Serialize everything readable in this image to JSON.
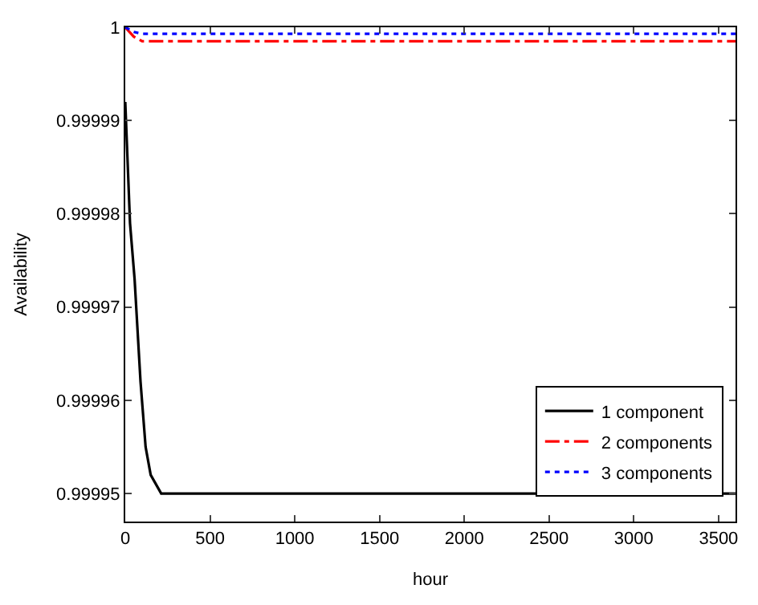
{
  "chart_data": {
    "type": "line",
    "xlabel": "hour",
    "ylabel": "Availability",
    "xlim": [
      0,
      3600
    ],
    "xticks": [
      0,
      500,
      1000,
      1500,
      2000,
      2500,
      3000,
      3500
    ],
    "ylim": [
      0.999947,
      1
    ],
    "yticks": [
      0.99995,
      0.99996,
      0.99997,
      0.99998,
      0.99999,
      1
    ],
    "legend": "bottom right",
    "marker": "none",
    "series": [
      {
        "name": "1 component",
        "color": "#000000",
        "line_style": "solid",
        "x": [
          0,
          28,
          55,
          90,
          120,
          150,
          212,
          3600
        ],
        "values": [
          0.999992,
          0.999979,
          0.999973,
          0.999962,
          0.999955,
          0.999952,
          0.99995,
          0.99995
        ]
      },
      {
        "name": "2 components",
        "color": "#ff0000",
        "line_style": "dashdot",
        "x": [
          0,
          50,
          100,
          3600
        ],
        "values": [
          1.0,
          0.999999,
          0.9999985,
          0.9999985
        ]
      },
      {
        "name": "3 components",
        "color": "#0000ff",
        "line_style": "dotted",
        "x": [
          0,
          50,
          100,
          3600
        ],
        "values": [
          1.0,
          0.9999995,
          0.9999993,
          0.9999993
        ]
      }
    ]
  }
}
